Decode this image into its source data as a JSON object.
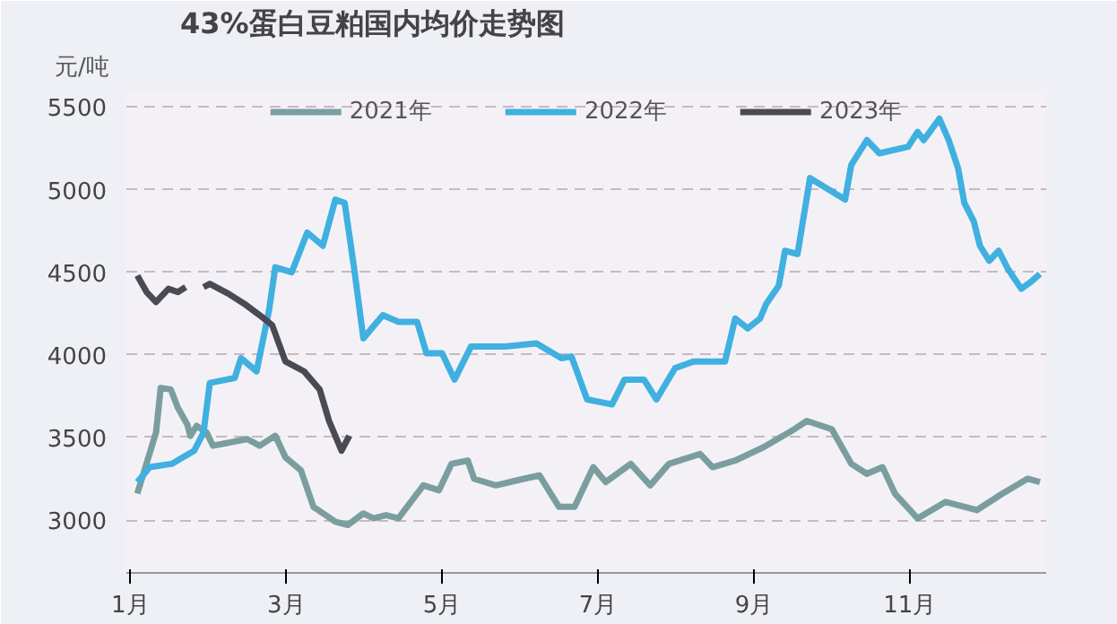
{
  "chart_data": {
    "type": "line",
    "title": "43%蛋白豆粕国内均价走势图",
    "ylabel": "元/吨",
    "xlim": [
      0.95,
      12.75
    ],
    "xticks": [
      {
        "value": 1,
        "label": "1月"
      },
      {
        "value": 3,
        "label": "3月"
      },
      {
        "value": 5,
        "label": "5月"
      },
      {
        "value": 7,
        "label": "7月"
      },
      {
        "value": 9,
        "label": "9月"
      },
      {
        "value": 11,
        "label": "11月"
      }
    ],
    "ylim": [
      2680,
      5600
    ],
    "yticks": [
      3000,
      3500,
      4000,
      4500,
      5000,
      5500
    ],
    "grid": "y",
    "legend": "top",
    "line_style": "solid",
    "marker": "none",
    "series": [
      {
        "name": "2021年",
        "color": "#7a9e9f",
        "x": [
          1.09,
          1.33,
          1.39,
          1.52,
          1.61,
          1.73,
          1.77,
          1.85,
          1.98,
          2.06,
          2.5,
          2.66,
          2.86,
          2.99,
          3.19,
          3.35,
          3.63,
          3.79,
          3.99,
          4.12,
          4.28,
          4.44,
          4.76,
          4.96,
          5.12,
          5.33,
          5.41,
          5.69,
          6.05,
          6.25,
          6.5,
          6.7,
          6.94,
          7.1,
          7.42,
          7.67,
          7.91,
          8.31,
          8.47,
          8.76,
          9.12,
          9.52,
          9.68,
          10.0,
          10.25,
          10.45,
          10.65,
          10.81,
          11.1,
          11.46,
          11.86,
          12.19,
          12.51,
          12.67
        ],
        "values": [
          3160,
          3530,
          3800,
          3790,
          3680,
          3580,
          3510,
          3570,
          3530,
          3450,
          3490,
          3450,
          3510,
          3380,
          3300,
          3080,
          2990,
          2970,
          3040,
          3010,
          3030,
          3010,
          3210,
          3180,
          3340,
          3360,
          3250,
          3210,
          3250,
          3270,
          3080,
          3080,
          3320,
          3230,
          3340,
          3210,
          3340,
          3400,
          3320,
          3360,
          3440,
          3550,
          3600,
          3550,
          3340,
          3280,
          3320,
          3160,
          3010,
          3110,
          3060,
          3160,
          3250,
          3230
        ]
      },
      {
        "name": "2022年",
        "color": "#3fb0e0",
        "x": [
          1.09,
          1.25,
          1.53,
          1.82,
          1.94,
          2.02,
          2.34,
          2.42,
          2.62,
          2.78,
          2.86,
          3.07,
          3.27,
          3.47,
          3.63,
          3.75,
          3.87,
          3.99,
          4.24,
          4.44,
          4.68,
          4.8,
          5.0,
          5.16,
          5.37,
          5.61,
          5.81,
          6.21,
          6.53,
          6.66,
          6.86,
          7.18,
          7.34,
          7.59,
          7.75,
          7.99,
          8.23,
          8.63,
          8.76,
          8.92,
          9.08,
          9.16,
          9.32,
          9.4,
          9.56,
          9.72,
          10.17,
          10.25,
          10.45,
          10.61,
          10.98,
          11.1,
          11.18,
          11.38,
          11.5,
          11.62,
          11.7,
          11.82,
          11.9,
          12.02,
          12.14,
          12.26,
          12.43,
          12.55,
          12.67
        ],
        "values": [
          3230,
          3320,
          3340,
          3420,
          3530,
          3830,
          3860,
          3980,
          3900,
          4270,
          4530,
          4500,
          4740,
          4660,
          4940,
          4920,
          4530,
          4100,
          4240,
          4200,
          4200,
          4010,
          4010,
          3850,
          4050,
          4050,
          4050,
          4070,
          3980,
          3990,
          3730,
          3700,
          3850,
          3850,
          3730,
          3920,
          3960,
          3960,
          4220,
          4160,
          4220,
          4310,
          4420,
          4630,
          4610,
          5070,
          4940,
          5150,
          5300,
          5220,
          5260,
          5350,
          5300,
          5430,
          5300,
          5130,
          4920,
          4810,
          4660,
          4570,
          4630,
          4520,
          4400,
          4440,
          4490
        ]
      },
      {
        "name": "2023年",
        "color": "#4a4a55",
        "x": [
          1.09,
          1.21,
          1.33,
          1.49,
          1.61,
          1.71,
          1.82,
          1.94,
          2.02,
          2.26,
          2.46,
          2.66,
          2.82,
          2.99,
          3.23,
          3.43,
          3.55,
          3.71,
          3.81
        ],
        "values": [
          4480,
          4380,
          4320,
          4400,
          4380,
          4410,
          null,
          4410,
          4430,
          4370,
          4310,
          4240,
          4180,
          3960,
          3900,
          3790,
          3600,
          3420,
          3510
        ]
      }
    ]
  }
}
